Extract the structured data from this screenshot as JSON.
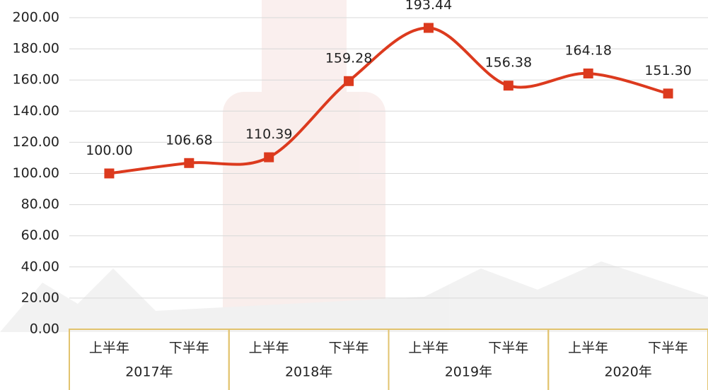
{
  "chart_data": {
    "type": "line",
    "categories": [
      "上半年",
      "下半年",
      "上半年",
      "下半年",
      "上半年",
      "下半年",
      "上半年",
      "下半年"
    ],
    "groups": [
      "2017年",
      "2018年",
      "2019年",
      "2020年"
    ],
    "values": [
      100,
      106.68,
      110.39,
      159.28,
      193.44,
      156.38,
      164.18,
      151.3
    ],
    "value_labels": [
      "100.00",
      "106.68",
      "110.39",
      "159.28",
      "193.44",
      "156.38",
      "164.18",
      "151.30"
    ],
    "color": "#dc3a1e",
    "ylim": [
      0,
      200
    ],
    "yticks": [
      {
        "value": 0,
        "label": "0.00"
      },
      {
        "value": 20,
        "label": "20.00"
      },
      {
        "value": 40,
        "label": "40.00"
      },
      {
        "value": 60,
        "label": "60.00"
      },
      {
        "value": 80,
        "label": "80.00"
      },
      {
        "value": 100,
        "label": "100.00"
      },
      {
        "value": 120,
        "label": "120.00"
      },
      {
        "value": 140,
        "label": "140.00"
      },
      {
        "value": 160,
        "label": "160.00"
      },
      {
        "value": 180,
        "label": "180.00"
      },
      {
        "value": 200,
        "label": "200.00"
      }
    ],
    "grid": true
  }
}
